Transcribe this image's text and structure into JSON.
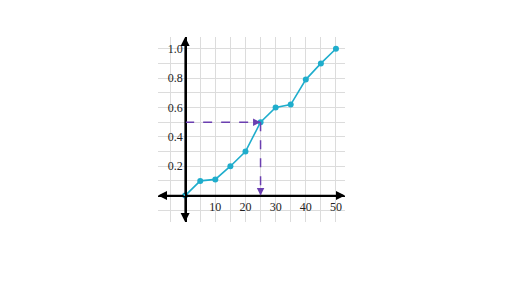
{
  "chart_data": {
    "type": "line",
    "x": [
      0,
      5,
      10,
      15,
      20,
      25,
      30,
      35,
      40,
      45,
      50
    ],
    "values": [
      0,
      0.1,
      0.11,
      0.2,
      0.3,
      0.5,
      0.6,
      0.62,
      0.79,
      0.9,
      1.0
    ],
    "color": "#1fadcc",
    "marker": "circle",
    "xlim": [
      -9,
      53
    ],
    "ylim": [
      -0.18,
      1.08
    ],
    "xticks": [
      10,
      20,
      30,
      40,
      50
    ],
    "yticks": [
      0.2,
      0.4,
      0.6,
      0.8,
      {
        "value": 1,
        "label": "1.0"
      }
    ],
    "grid": true,
    "reference_point": {
      "x": 25,
      "y": 0.5,
      "color": "#6b3fb0"
    }
  }
}
